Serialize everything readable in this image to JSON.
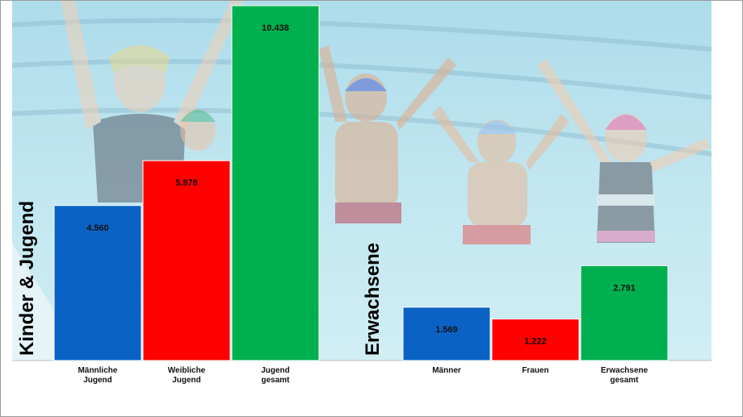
{
  "chart_data": {
    "type": "bar",
    "groups": [
      {
        "title": "Kinder & Jugend",
        "categories": [
          "Männliche Jugend",
          "Weibliche Jugend",
          "Jugend gesamt"
        ],
        "values": [
          4560,
          5878,
          10438
        ],
        "value_labels": [
          "4.560",
          "5.878",
          "10.438"
        ],
        "colors": [
          "#0a63c4",
          "#ff0000",
          "#00b04f"
        ]
      },
      {
        "title": "Erwachsene",
        "categories": [
          "Männer",
          "Frauen",
          "Erwachsene gesamt"
        ],
        "values": [
          1569,
          1222,
          2791
        ],
        "value_labels": [
          "1.569",
          "1.222",
          "2.791"
        ],
        "colors": [
          "#0a63c4",
          "#ff0000",
          "#00b04f"
        ]
      }
    ],
    "ylim": [
      0,
      10438
    ],
    "grid": false,
    "legend": "none"
  },
  "background_image": "swimming-pool-people-cheering"
}
